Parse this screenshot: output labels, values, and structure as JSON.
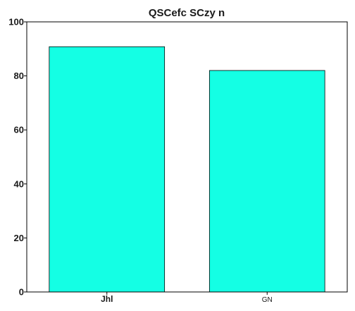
{
  "chart_data": {
    "type": "bar",
    "title": "QSCefc SCzy n",
    "xlabel": "",
    "ylabel": "",
    "categories": [
      "Jhl",
      "GN"
    ],
    "values": [
      90.8,
      82.0
    ],
    "ylim": [
      0,
      100
    ],
    "yticks": [
      "0",
      "20",
      "40",
      "60",
      "80",
      "100"
    ],
    "grid": false,
    "legend": "none",
    "colors": {
      "bar_fill": "#14ffe4",
      "bar_edge": "#000000",
      "axis": "#000000",
      "text": "#1a1a1a"
    }
  }
}
